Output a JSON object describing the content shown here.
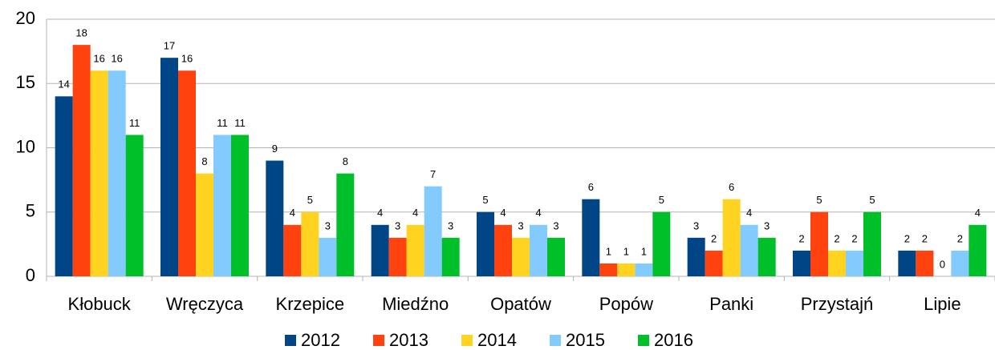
{
  "chart_data": {
    "type": "bar",
    "categories": [
      "Kłobuck",
      "Wręczyca",
      "Krzepice",
      "Miedźno",
      "Opatów",
      "Popów",
      "Panki",
      "Przystajń",
      "Lipie"
    ],
    "series": [
      {
        "name": "2012",
        "color": "#004586",
        "values": [
          14,
          17,
          9,
          4,
          5,
          6,
          3,
          2,
          2
        ]
      },
      {
        "name": "2013",
        "color": "#ff420e",
        "values": [
          18,
          16,
          4,
          3,
          4,
          1,
          2,
          5,
          2
        ]
      },
      {
        "name": "2014",
        "color": "#ffd320",
        "values": [
          16,
          8,
          5,
          4,
          3,
          1,
          6,
          2,
          0
        ]
      },
      {
        "name": "2015",
        "color": "#83caff",
        "values": [
          16,
          11,
          3,
          7,
          4,
          1,
          4,
          2,
          2
        ]
      },
      {
        "name": "2016",
        "color": "#00c02a",
        "values": [
          11,
          11,
          8,
          3,
          3,
          5,
          3,
          5,
          4
        ]
      }
    ],
    "ylim": [
      0,
      20
    ],
    "yticks": [
      0,
      5,
      10,
      15,
      20
    ],
    "grid": true,
    "legend": "bottom"
  }
}
